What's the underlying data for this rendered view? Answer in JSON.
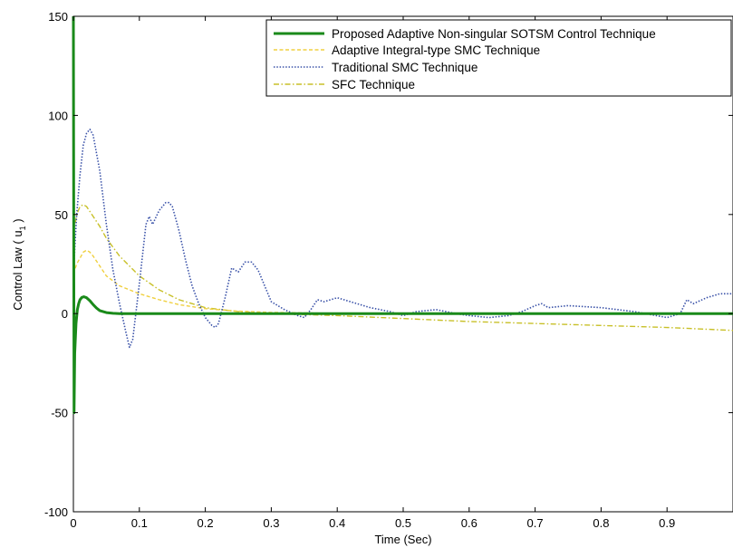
{
  "chart_data": {
    "type": "line",
    "title": "",
    "xlabel": "Time (Sec)",
    "ylabel_main": "Control Law ( u",
    "ylabel_sub": "1",
    "ylabel_end": " )",
    "xlim": [
      0,
      1
    ],
    "ylim": [
      -100,
      150
    ],
    "xticks": [
      0,
      0.1,
      0.2,
      0.3,
      0.4,
      0.5,
      0.6,
      0.7,
      0.8,
      0.9
    ],
    "xtick_labels": [
      "0",
      "0.1",
      "0.2",
      "0.3",
      "0.4",
      "0.5",
      "0.6",
      "0.7",
      "0.8",
      "0.9"
    ],
    "yticks": [
      -100,
      -50,
      0,
      50,
      100,
      150
    ],
    "ytick_labels": [
      "-100",
      "-50",
      "0",
      "50",
      "100",
      "150"
    ],
    "grid": false,
    "legend_position": "top-right",
    "series": [
      {
        "name": "Proposed Adaptive Non-singular SOTSM Control Technique",
        "color": "#1a8a1a",
        "style": "solid",
        "x": [
          0,
          0.001,
          0.002,
          0.004,
          0.006,
          0.008,
          0.01,
          0.013,
          0.016,
          0.02,
          0.025,
          0.03,
          0.035,
          0.04,
          0.05,
          0.06,
          0.07,
          0.08,
          0.1,
          0.15,
          0.2,
          0.3,
          0.4,
          0.5,
          0.6,
          0.7,
          0.8,
          0.9,
          1.0
        ],
        "y": [
          150,
          -50,
          -20,
          -5,
          2,
          5,
          7,
          8.2,
          8.5,
          8,
          6.5,
          4.5,
          2.8,
          1.5,
          0.5,
          0.15,
          0,
          0,
          0,
          0,
          0,
          0,
          0,
          0,
          0,
          0,
          0,
          0,
          0
        ]
      },
      {
        "name": "Adaptive Integral-type SMC Technique",
        "color": "#f0d040",
        "style": "dashed",
        "x": [
          0,
          0.005,
          0.01,
          0.015,
          0.02,
          0.025,
          0.03,
          0.04,
          0.05,
          0.07,
          0.1,
          0.13,
          0.16,
          0.2,
          0.25,
          0.3,
          0.4,
          0.5,
          0.6,
          0.7,
          0.8,
          0.9,
          1.0
        ],
        "y": [
          20,
          25,
          28,
          31,
          32,
          31,
          29,
          24,
          19,
          14,
          10,
          7,
          4.5,
          2.5,
          1.2,
          0.6,
          0.1,
          0,
          0,
          0,
          0,
          0,
          0
        ]
      },
      {
        "name": "Traditional SMC Technique",
        "color": "#3a52a8",
        "style": "dotted",
        "x": [
          0,
          0.005,
          0.01,
          0.015,
          0.02,
          0.025,
          0.03,
          0.04,
          0.05,
          0.06,
          0.07,
          0.08,
          0.085,
          0.09,
          0.1,
          0.11,
          0.115,
          0.12,
          0.13,
          0.14,
          0.145,
          0.15,
          0.16,
          0.17,
          0.18,
          0.19,
          0.2,
          0.21,
          0.215,
          0.22,
          0.23,
          0.24,
          0.25,
          0.26,
          0.27,
          0.28,
          0.29,
          0.3,
          0.32,
          0.34,
          0.35,
          0.36,
          0.37,
          0.38,
          0.4,
          0.42,
          0.45,
          0.48,
          0.5,
          0.52,
          0.55,
          0.58,
          0.6,
          0.63,
          0.66,
          0.68,
          0.7,
          0.71,
          0.72,
          0.75,
          0.8,
          0.85,
          0.9,
          0.92,
          0.93,
          0.94,
          0.96,
          0.98,
          1.0
        ],
        "y": [
          20,
          50,
          70,
          85,
          91,
          93,
          90,
          72,
          45,
          22,
          5,
          -10,
          -17,
          -13,
          15,
          45,
          49,
          45,
          52,
          56,
          56,
          54,
          42,
          27,
          14,
          5,
          -2,
          -6,
          -7,
          -5,
          8,
          23,
          21,
          26,
          26,
          22,
          14,
          6,
          2,
          -1,
          -2,
          2,
          7,
          6,
          8,
          6,
          3,
          1,
          -1,
          1,
          2,
          0,
          -1,
          -2,
          -1,
          1,
          4,
          5,
          3,
          4,
          3,
          1,
          -2,
          0,
          7,
          5,
          8,
          10,
          10
        ]
      },
      {
        "name": "SFC Technique",
        "color": "#c8c028",
        "style": "dashdot",
        "x": [
          0,
          0.005,
          0.01,
          0.015,
          0.02,
          0.03,
          0.04,
          0.05,
          0.07,
          0.1,
          0.13,
          0.16,
          0.2,
          0.25,
          0.3,
          0.35,
          0.4,
          0.5,
          0.6,
          0.7,
          0.8,
          0.9,
          1.0
        ],
        "y": [
          40,
          50,
          54,
          55,
          54,
          49,
          44,
          38,
          29,
          19,
          12,
          7,
          3,
          1,
          0,
          -0.5,
          -1,
          -2.5,
          -4,
          -5,
          -6,
          -7,
          -8.5
        ]
      }
    ]
  }
}
